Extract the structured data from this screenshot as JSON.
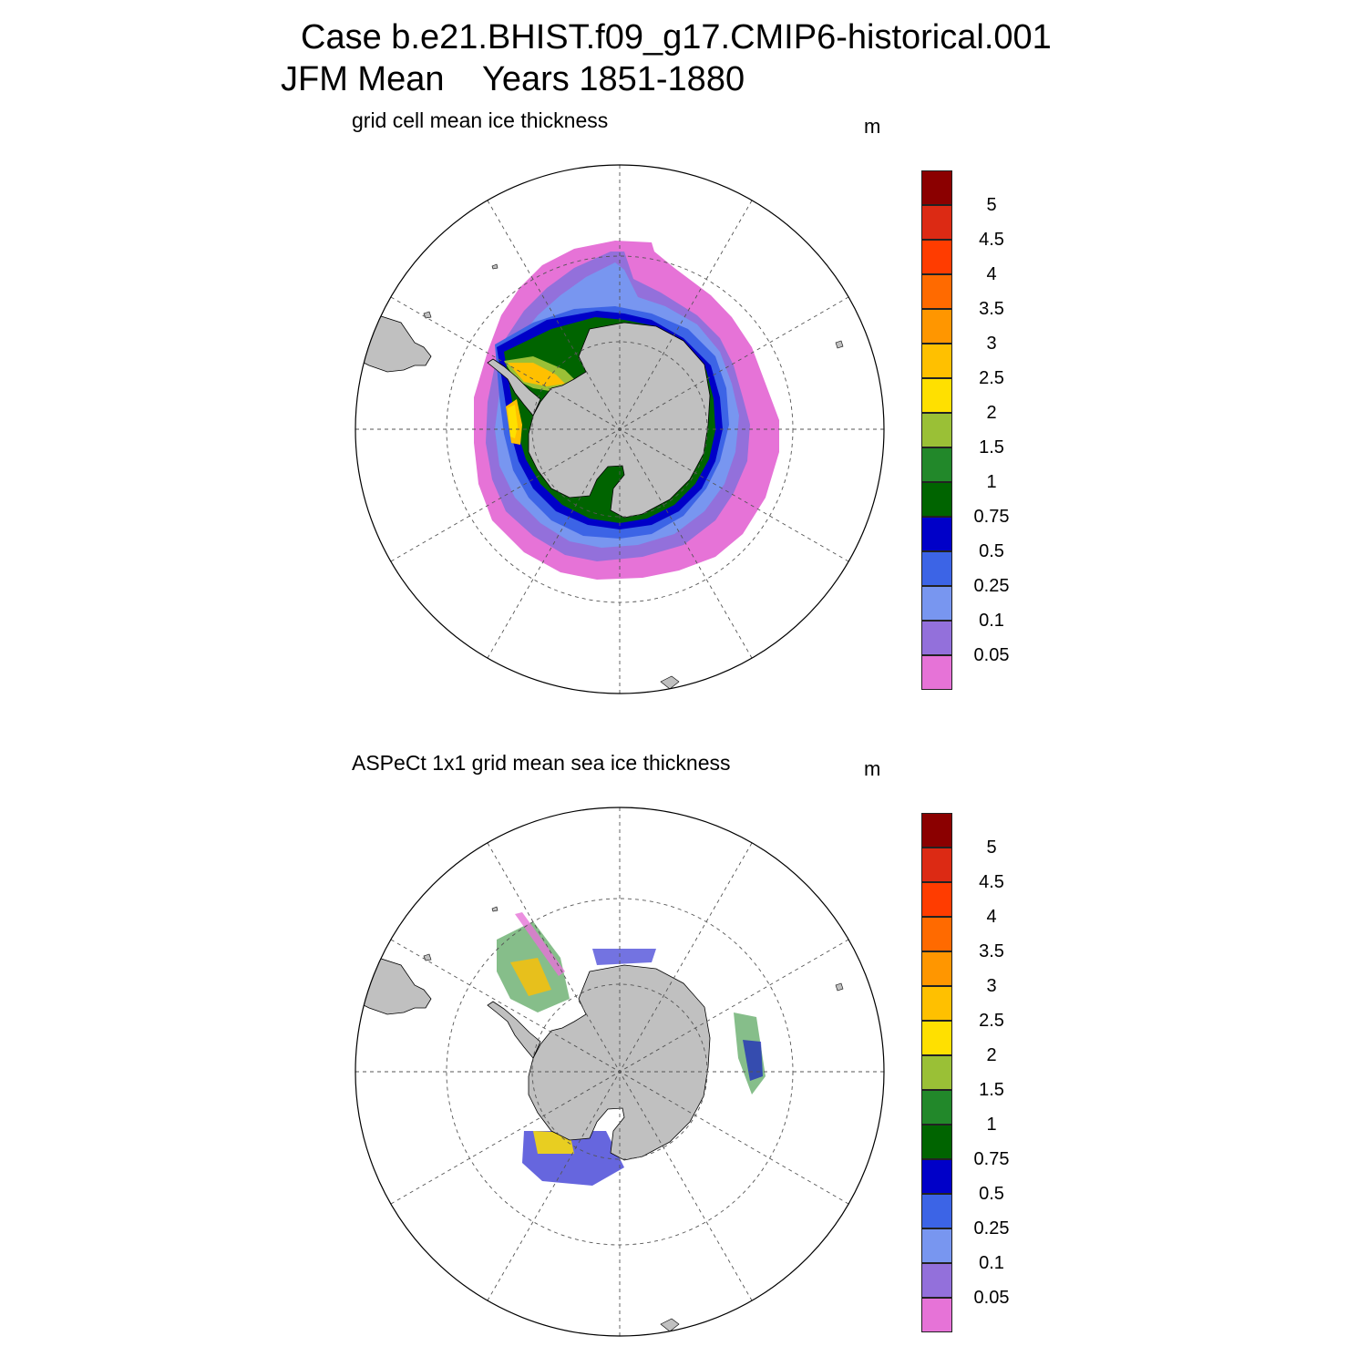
{
  "header": {
    "line1": "Case b.e21.BHIST.f09_g17.CMIP6-historical.001",
    "line2": "JFM Mean    Years 1851-1880"
  },
  "panels": [
    {
      "title": "grid cell mean ice thickness",
      "units": "m"
    },
    {
      "title": "ASPeCt 1x1 grid mean sea ice thickness",
      "units": "m"
    }
  ],
  "colorbar": {
    "labels": [
      "5",
      "4.5",
      "4",
      "3.5",
      "3",
      "2.5",
      "2",
      "1.5",
      "1",
      "0.75",
      "0.5",
      "0.25",
      "0.1",
      "0.05"
    ],
    "colors_top_to_bottom": [
      "#8b0000",
      "#dc2a14",
      "#ff3c00",
      "#ff6a00",
      "#ff9600",
      "#ffc000",
      "#ffe000",
      "#9ac036",
      "#22882a",
      "#006400",
      "#0000c8",
      "#3c64e6",
      "#7896f0",
      "#9370db",
      "#e673d7"
    ]
  },
  "map_colors": {
    "land": "#c0c0c0",
    "ocean": "#ffffff",
    "grid": "#555555"
  }
}
